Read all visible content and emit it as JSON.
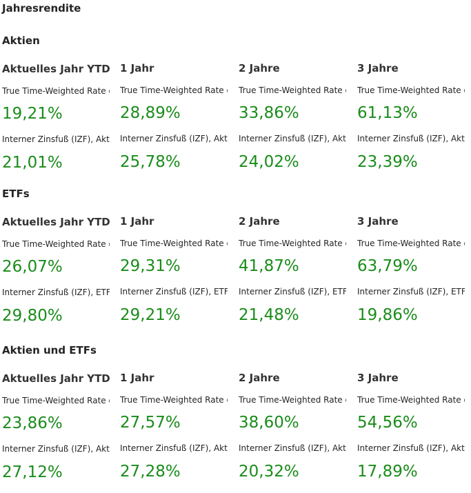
{
  "page": {
    "title": "Jahresrendite",
    "value_color": "#1a8c1a"
  },
  "sections": [
    {
      "title": "Aktien",
      "columns": [
        {
          "period": "Aktuelles Jahr YTD",
          "ttwr_label": "True Time-Weighted Rate of I",
          "ttwr": "19,21%",
          "izf_label": "Interner Zinsfuß (IZF), Aktien",
          "izf": "21,01%"
        },
        {
          "period": "1 Jahr",
          "ttwr_label": "True Time-Weighted Rate of I",
          "ttwr": "28,89%",
          "izf_label": "Interner Zinsfuß (IZF), Aktien",
          "izf": "25,78%"
        },
        {
          "period": "2 Jahre",
          "ttwr_label": "True Time-Weighted Rate of I",
          "ttwr": "33,86%",
          "izf_label": "Interner Zinsfuß (IZF), Aktien",
          "izf": "24,02%"
        },
        {
          "period": "3 Jahre",
          "ttwr_label": "True Time-Weighted Rate of I",
          "ttwr": "61,13%",
          "izf_label": "Interner Zinsfuß (IZF), Aktien",
          "izf": "23,39%"
        }
      ]
    },
    {
      "title": "ETFs",
      "columns": [
        {
          "period": "Aktuelles Jahr YTD",
          "ttwr_label": "True Time-Weighted Rate of I",
          "ttwr": "26,07%",
          "izf_label": "Interner Zinsfuß (IZF), ETF",
          "izf": "29,80%"
        },
        {
          "period": "1 Jahr",
          "ttwr_label": "True Time-Weighted Rate of I",
          "ttwr": "29,31%",
          "izf_label": "Interner Zinsfuß (IZF), ETF",
          "izf": "29,21%"
        },
        {
          "period": "2 Jahre",
          "ttwr_label": "True Time-Weighted Rate of I",
          "ttwr": "41,87%",
          "izf_label": "Interner Zinsfuß (IZF), ETF",
          "izf": "21,48%"
        },
        {
          "period": "3 Jahre",
          "ttwr_label": "True Time-Weighted Rate of I",
          "ttwr": "63,79%",
          "izf_label": "Interner Zinsfuß (IZF), ETF",
          "izf": "19,86%"
        }
      ]
    },
    {
      "title": "Aktien und ETFs",
      "columns": [
        {
          "period": "Aktuelles Jahr YTD",
          "ttwr_label": "True Time-Weighted Rate of I",
          "ttwr": "23,86%",
          "izf_label": "Interner Zinsfuß (IZF), Aktien",
          "izf": "27,12%"
        },
        {
          "period": "1 Jahr",
          "ttwr_label": "True Time-Weighted Rate of I",
          "ttwr": "27,57%",
          "izf_label": "Interner Zinsfuß (IZF), Aktien",
          "izf": "27,28%"
        },
        {
          "period": "2 Jahre",
          "ttwr_label": "True Time-Weighted Rate of I",
          "ttwr": "38,60%",
          "izf_label": "Interner Zinsfuß (IZF), Aktien",
          "izf": "20,32%"
        },
        {
          "period": "3 Jahre",
          "ttwr_label": "True Time-Weighted Rate of I",
          "ttwr": "54,56%",
          "izf_label": "Interner Zinsfuß (IZF), Aktien",
          "izf": "17,89%"
        }
      ]
    }
  ]
}
